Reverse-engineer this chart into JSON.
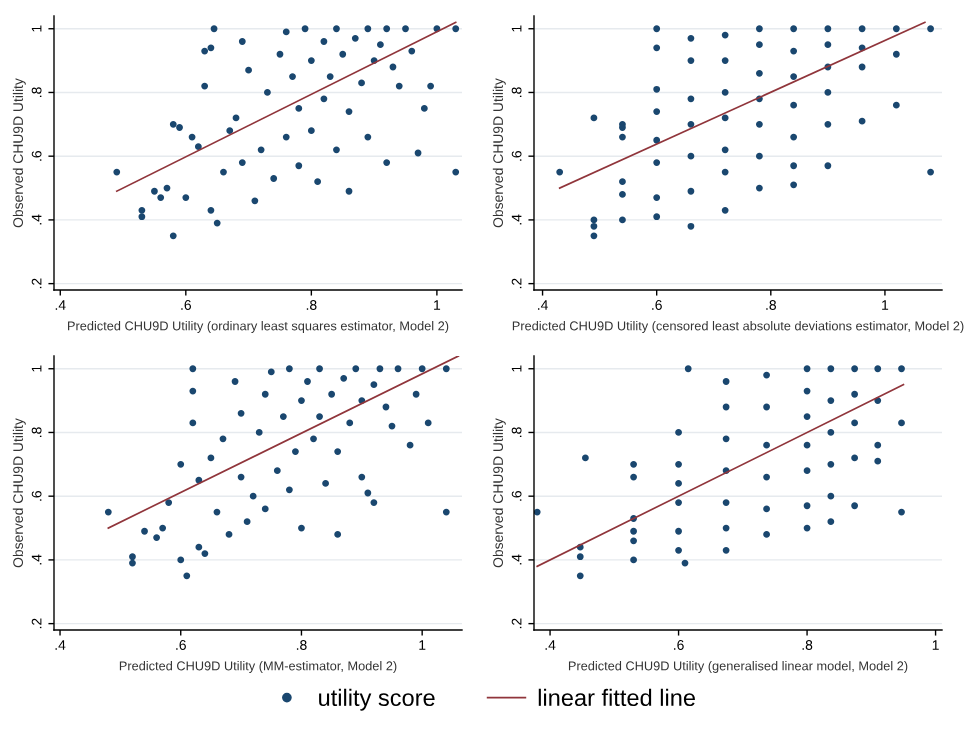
{
  "chart_data": [
    {
      "type": "scatter",
      "xlabel": "Predicted CHU9D Utility (ordinary least squares estimator, Model 2)",
      "ylabel": "Observed CHU9D Utility",
      "xlim": [
        0.39,
        1.04
      ],
      "ylim": [
        0.18,
        1.04
      ],
      "xticks": [
        {
          "value": 0.4,
          "label": ".4"
        },
        {
          "value": 0.6,
          "label": ".6"
        },
        {
          "value": 0.8,
          "label": ".8"
        },
        {
          "value": 1,
          "label": "1"
        }
      ],
      "yticks": [
        {
          "value": 0.2,
          "label": ".2"
        },
        {
          "value": 0.4,
          "label": ".4"
        },
        {
          "value": 0.6,
          "label": ".6"
        },
        {
          "value": 0.8,
          "label": ".8"
        },
        {
          "value": 1,
          "label": "1"
        }
      ],
      "grid": "y",
      "tick_labels": "xy",
      "series": [
        {
          "type": "scatter",
          "marker": "circle",
          "color": "#1a476f",
          "x": [
            0.49,
            0.53,
            0.53,
            0.55,
            0.56,
            0.57,
            0.58,
            0.58,
            0.59,
            0.6,
            0.61,
            0.62,
            0.63,
            0.63,
            0.64,
            0.645,
            0.64,
            0.65,
            0.66,
            0.67,
            0.68,
            0.69,
            0.69,
            0.7,
            0.71,
            0.72,
            0.73,
            0.74,
            0.75,
            0.76,
            0.76,
            0.77,
            0.78,
            0.78,
            0.79,
            0.8,
            0.8,
            0.81,
            0.82,
            0.82,
            0.83,
            0.84,
            0.84,
            0.85,
            0.86,
            0.86,
            0.87,
            0.88,
            0.89,
            0.89,
            0.9,
            0.91,
            0.92,
            0.92,
            0.93,
            0.94,
            0.95,
            0.96,
            0.98,
            0.99,
            1.0,
            1.03,
            1.03,
            0.97
          ],
          "values": [
            0.55,
            0.43,
            0.41,
            0.49,
            0.47,
            0.5,
            0.35,
            0.7,
            0.69,
            0.47,
            0.66,
            0.63,
            0.82,
            0.93,
            0.94,
            1.0,
            0.43,
            0.39,
            0.55,
            0.68,
            0.72,
            0.96,
            0.58,
            0.87,
            0.46,
            0.62,
            0.8,
            0.53,
            0.92,
            0.99,
            0.66,
            0.85,
            0.57,
            0.75,
            1.0,
            0.9,
            0.68,
            0.52,
            0.96,
            0.78,
            0.85,
            1.0,
            0.62,
            0.92,
            0.49,
            0.74,
            0.97,
            0.83,
            1.0,
            0.66,
            0.9,
            0.95,
            1.0,
            0.58,
            0.88,
            0.82,
            1.0,
            0.93,
            0.75,
            0.82,
            1.0,
            1.0,
            0.55,
            0.61
          ]
        },
        {
          "type": "line",
          "color": "#90353b",
          "x": [
            0.49,
            1.03
          ],
          "values": [
            0.49,
            1.02
          ]
        }
      ]
    },
    {
      "type": "scatter",
      "xlabel": "Predicted CHU9D Utility (censored least absolute deviations estimator, Model 2)",
      "ylabel": "Observed CHU9D Utility",
      "xlim": [
        0.385,
        1.1
      ],
      "ylim": [
        0.18,
        1.04
      ],
      "xticks": [
        {
          "value": 0.4,
          "label": ".4"
        },
        {
          "value": 0.6,
          "label": ".6"
        },
        {
          "value": 0.8,
          "label": ".8"
        },
        {
          "value": 1,
          "label": "1"
        }
      ],
      "yticks": [
        {
          "value": 0.2,
          "label": ".2"
        },
        {
          "value": 0.4,
          "label": ".4"
        },
        {
          "value": 0.6,
          "label": ".6"
        },
        {
          "value": 0.8,
          "label": ".8"
        },
        {
          "value": 1,
          "label": "1"
        }
      ],
      "grid": "y",
      "series": [
        {
          "type": "scatter",
          "marker": "circle",
          "color": "#1a476f",
          "x": [
            0.43,
            0.49,
            0.49,
            0.49,
            0.49,
            0.54,
            0.54,
            0.54,
            0.54,
            0.54,
            0.54,
            0.6,
            0.6,
            0.6,
            0.6,
            0.6,
            0.6,
            0.6,
            0.6,
            0.66,
            0.66,
            0.66,
            0.66,
            0.66,
            0.66,
            0.66,
            0.72,
            0.72,
            0.72,
            0.72,
            0.72,
            0.72,
            0.72,
            0.78,
            0.78,
            0.78,
            0.78,
            0.78,
            0.78,
            0.78,
            0.84,
            0.84,
            0.84,
            0.84,
            0.84,
            0.84,
            0.84,
            0.9,
            0.9,
            0.9,
            0.9,
            0.9,
            0.9,
            0.96,
            0.96,
            0.96,
            0.96,
            1.02,
            1.02,
            1.02,
            1.08,
            1.08
          ],
          "values": [
            0.55,
            0.72,
            0.4,
            0.38,
            0.35,
            0.7,
            0.66,
            0.52,
            0.48,
            0.4,
            0.69,
            1.0,
            0.94,
            0.81,
            0.74,
            0.65,
            0.58,
            0.47,
            0.41,
            0.97,
            0.9,
            0.78,
            0.7,
            0.6,
            0.49,
            0.38,
            0.98,
            0.9,
            0.8,
            0.72,
            0.62,
            0.55,
            0.43,
            1.0,
            0.95,
            0.86,
            0.78,
            0.7,
            0.6,
            0.5,
            1.0,
            0.93,
            0.85,
            0.76,
            0.66,
            0.57,
            0.51,
            1.0,
            0.95,
            0.88,
            0.8,
            0.7,
            0.57,
            1.0,
            0.94,
            0.88,
            0.71,
            1.0,
            0.92,
            0.76,
            1.0,
            0.55
          ]
        },
        {
          "type": "line",
          "color": "#90353b",
          "x": [
            0.43,
            1.07
          ],
          "values": [
            0.5,
            1.02
          ]
        }
      ]
    },
    {
      "type": "scatter",
      "xlabel": "Predicted CHU9D Utility (MM-estimator, Model 2)",
      "ylabel": "Observed CHU9D Utility",
      "xlim": [
        0.39,
        1.066
      ],
      "ylim": [
        0.18,
        1.04
      ],
      "xticks": [
        {
          "value": 0.4,
          "label": ".4"
        },
        {
          "value": 0.6,
          "label": ".6"
        },
        {
          "value": 0.8,
          "label": ".8"
        },
        {
          "value": 1,
          "label": "1"
        }
      ],
      "yticks": [
        {
          "value": 0.2,
          "label": ".2"
        },
        {
          "value": 0.4,
          "label": ".4"
        },
        {
          "value": 0.6,
          "label": ".6"
        },
        {
          "value": 0.8,
          "label": ".8"
        },
        {
          "value": 1,
          "label": "1"
        }
      ],
      "grid": "y",
      "series": [
        {
          "type": "scatter",
          "marker": "circle",
          "color": "#1a476f",
          "x": [
            0.48,
            0.52,
            0.52,
            0.54,
            0.56,
            0.57,
            0.58,
            0.6,
            0.6,
            0.61,
            0.62,
            0.62,
            0.62,
            0.63,
            0.63,
            0.64,
            0.65,
            0.66,
            0.67,
            0.68,
            0.69,
            0.7,
            0.7,
            0.71,
            0.72,
            0.73,
            0.74,
            0.74,
            0.75,
            0.76,
            0.77,
            0.78,
            0.78,
            0.79,
            0.8,
            0.8,
            0.81,
            0.82,
            0.83,
            0.83,
            0.84,
            0.85,
            0.86,
            0.86,
            0.87,
            0.88,
            0.89,
            0.9,
            0.9,
            0.91,
            0.92,
            0.93,
            0.94,
            0.95,
            0.96,
            0.98,
            0.99,
            1.0,
            1.01,
            1.04,
            1.04,
            0.92
          ],
          "values": [
            0.55,
            0.41,
            0.39,
            0.49,
            0.47,
            0.5,
            0.58,
            0.4,
            0.7,
            0.35,
            0.83,
            0.93,
            1.0,
            0.65,
            0.44,
            0.42,
            0.72,
            0.55,
            0.78,
            0.48,
            0.96,
            0.66,
            0.86,
            0.52,
            0.6,
            0.8,
            0.92,
            0.56,
            0.99,
            0.68,
            0.85,
            1.0,
            0.62,
            0.74,
            0.9,
            0.5,
            0.96,
            0.78,
            0.85,
            1.0,
            0.64,
            0.92,
            0.48,
            0.74,
            0.97,
            0.83,
            1.0,
            0.66,
            0.9,
            0.61,
            0.95,
            1.0,
            0.88,
            0.82,
            1.0,
            0.76,
            0.92,
            1.0,
            0.83,
            1.0,
            0.55,
            0.58
          ]
        },
        {
          "type": "line",
          "color": "#90353b",
          "x": [
            0.48,
            1.06
          ],
          "values": [
            0.5,
            1.04
          ]
        }
      ]
    },
    {
      "type": "scatter",
      "xlabel": "Predicted CHU9D Utility (generalised linear model, Model 2)",
      "ylabel": "Observed CHU9D Utility",
      "xlim": [
        0.375,
        1.01
      ],
      "ylim": [
        0.18,
        1.04
      ],
      "xticks": [
        {
          "value": 0.4,
          "label": ".4"
        },
        {
          "value": 0.6,
          "label": ".6"
        },
        {
          "value": 0.8,
          "label": ".8"
        },
        {
          "value": 1,
          "label": "1"
        }
      ],
      "yticks": [
        {
          "value": 0.2,
          "label": ".2"
        },
        {
          "value": 0.4,
          "label": ".4"
        },
        {
          "value": 0.6,
          "label": ".6"
        },
        {
          "value": 0.8,
          "label": ".8"
        },
        {
          "value": 1,
          "label": "1"
        }
      ],
      "grid": "y",
      "legend": "bottom",
      "series": [
        {
          "type": "scatter",
          "marker": "circle",
          "name": "utility score",
          "color": "#1a476f",
          "x": [
            0.38,
            0.447,
            0.447,
            0.447,
            0.455,
            0.53,
            0.53,
            0.53,
            0.53,
            0.53,
            0.53,
            0.6,
            0.6,
            0.6,
            0.6,
            0.6,
            0.6,
            0.61,
            0.615,
            0.674,
            0.674,
            0.674,
            0.674,
            0.674,
            0.674,
            0.674,
            0.737,
            0.737,
            0.737,
            0.737,
            0.737,
            0.737,
            0.8,
            0.8,
            0.8,
            0.8,
            0.8,
            0.8,
            0.8,
            0.837,
            0.837,
            0.837,
            0.837,
            0.837,
            0.837,
            0.874,
            0.874,
            0.874,
            0.874,
            0.874,
            0.91,
            0.91,
            0.91,
            0.91,
            0.947,
            0.947,
            0.947
          ],
          "values": [
            0.55,
            0.44,
            0.41,
            0.35,
            0.72,
            0.7,
            0.66,
            0.53,
            0.49,
            0.46,
            0.4,
            0.7,
            0.64,
            0.58,
            0.49,
            0.43,
            0.8,
            0.39,
            1.0,
            0.96,
            0.88,
            0.78,
            0.68,
            0.58,
            0.5,
            0.43,
            0.98,
            0.88,
            0.76,
            0.66,
            0.56,
            0.48,
            1.0,
            0.93,
            0.85,
            0.76,
            0.68,
            0.57,
            0.5,
            1.0,
            0.9,
            0.8,
            0.7,
            0.6,
            0.52,
            1.0,
            0.92,
            0.83,
            0.72,
            0.57,
            1.0,
            0.9,
            0.76,
            0.71,
            1.0,
            0.83,
            0.55
          ]
        },
        {
          "type": "line",
          "name": "linear fitted line",
          "color": "#90353b",
          "x": [
            0.38,
            0.95
          ],
          "values": [
            0.38,
            0.95
          ]
        }
      ]
    }
  ]
}
